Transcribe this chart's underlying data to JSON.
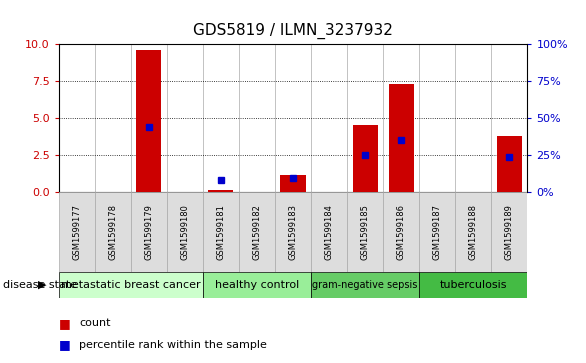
{
  "title": "GDS5819 / ILMN_3237932",
  "samples": [
    "GSM1599177",
    "GSM1599178",
    "GSM1599179",
    "GSM1599180",
    "GSM1599181",
    "GSM1599182",
    "GSM1599183",
    "GSM1599184",
    "GSM1599185",
    "GSM1599186",
    "GSM1599187",
    "GSM1599188",
    "GSM1599189"
  ],
  "counts": [
    0.0,
    0.0,
    9.6,
    0.0,
    0.15,
    0.0,
    1.2,
    0.0,
    4.55,
    7.3,
    0.0,
    0.0,
    3.8
  ],
  "percentiles": [
    null,
    null,
    44,
    null,
    8,
    null,
    10,
    null,
    25,
    35,
    null,
    null,
    24
  ],
  "groups": [
    {
      "label": "metastatic breast cancer",
      "start": 0,
      "end": 3,
      "color": "#ccffcc"
    },
    {
      "label": "healthy control",
      "start": 4,
      "end": 6,
      "color": "#99ee99"
    },
    {
      "label": "gram-negative sepsis",
      "start": 7,
      "end": 9,
      "color": "#66cc66"
    },
    {
      "label": "tuberculosis",
      "start": 10,
      "end": 12,
      "color": "#44bb44"
    }
  ],
  "left_ylim": [
    0,
    10
  ],
  "right_ylim": [
    0,
    100
  ],
  "left_yticks": [
    0,
    2.5,
    5.0,
    7.5,
    10
  ],
  "right_yticks": [
    0,
    25,
    50,
    75,
    100
  ],
  "bar_color": "#cc0000",
  "point_color": "#0000cc",
  "bg_color": "#ffffff",
  "tick_label_color_left": "#cc0000",
  "tick_label_color_right": "#0000cc",
  "col_bg_color": "#dddddd",
  "col_border_color": "#aaaaaa"
}
